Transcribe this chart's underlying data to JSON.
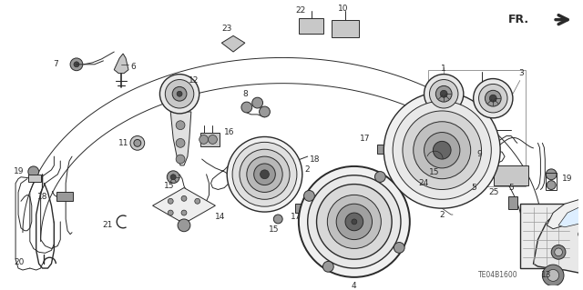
{
  "bg_color": "#ffffff",
  "line_color": "#2a2a2a",
  "fig_width": 6.4,
  "fig_height": 3.19,
  "watermark": "TE04B1600",
  "dpi": 100,
  "antenna_wire_color": "#333333",
  "part_label_fs": 6.0,
  "gray_light": "#c8c8c8",
  "gray_mid": "#999999",
  "gray_dark": "#666666",
  "gray_darkest": "#444444"
}
